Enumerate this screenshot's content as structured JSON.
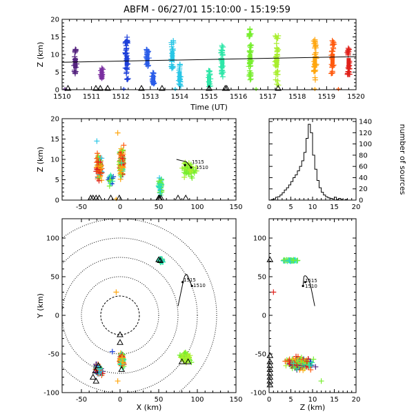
{
  "title": "ABFM - 06/27/01 15:10:00 - 15:19:59",
  "colors": {
    "t1510": "#55237f",
    "t1511": "#7a2fa0",
    "t1512": "#1d3fd9",
    "t1513": "#2a5ce8",
    "t1514": "#29c6e6",
    "t1515": "#2ee6a8",
    "t1516": "#77ee2e",
    "t1517": "#a8ee2e",
    "t1518": "#ffa60f",
    "t1519": "#ff5a0f",
    "t1520": "#e0201a",
    "station": "#000000",
    "track": "#000000"
  },
  "chart_data": [
    {
      "id": "time-height",
      "type": "scatter",
      "xlabel": "Time (UT)",
      "ylabel": "Z (km)",
      "xticks": [
        "1510",
        "1511",
        "1512",
        "1513",
        "1514",
        "1515",
        "1516",
        "1517",
        "1518",
        "1519",
        "1520"
      ],
      "yticks": [
        "0",
        "5",
        "10",
        "15",
        "20"
      ],
      "ylim": [
        0,
        20
      ],
      "xlim": [
        0,
        10
      ],
      "trend": [
        [
          0,
          7.8
        ],
        [
          10,
          9.4
        ]
      ],
      "clusters": [
        {
          "t": 0.45,
          "zmin": 4.5,
          "zmax": 11.5,
          "c": "t1510"
        },
        {
          "t": 1.35,
          "zmin": 3.2,
          "zmax": 6.5,
          "c": "t1511"
        },
        {
          "t": 2.2,
          "zmin": 2.5,
          "zmax": 15.0,
          "c": "t1512"
        },
        {
          "t": 2.9,
          "zmin": 6.5,
          "zmax": 12.0,
          "c": "t1513"
        },
        {
          "t": 3.1,
          "zmin": 1.5,
          "zmax": 5.0,
          "c": "t1513"
        },
        {
          "t": 3.75,
          "zmin": 6.0,
          "zmax": 14.0,
          "c": "t1514"
        },
        {
          "t": 4.0,
          "zmin": 1.0,
          "zmax": 7.5,
          "c": "t1514"
        },
        {
          "t": 5.0,
          "zmin": 0.5,
          "zmax": 5.5,
          "c": "t1515"
        },
        {
          "t": 5.45,
          "zmin": 3.0,
          "zmax": 13.0,
          "c": "t1515"
        },
        {
          "t": 6.4,
          "zmin": 1.0,
          "zmax": 17.5,
          "c": "t1516"
        },
        {
          "t": 7.3,
          "zmin": 1.0,
          "zmax": 15.5,
          "c": "t1517"
        },
        {
          "t": 8.6,
          "zmin": 2.5,
          "zmax": 14.5,
          "c": "t1518"
        },
        {
          "t": 9.2,
          "zmin": 4.0,
          "zmax": 14.5,
          "c": "t1519"
        },
        {
          "t": 9.75,
          "zmin": 4.0,
          "zmax": 12.0,
          "c": "t1520"
        }
      ]
    },
    {
      "id": "x-height",
      "type": "scatter",
      "ylabel": "Z (km)",
      "xticks": [
        "-50",
        "0",
        "50",
        "100",
        "150"
      ],
      "yticks": [
        "0",
        "5",
        "10",
        "15",
        "20"
      ],
      "xlim": [
        -75,
        150
      ],
      "ylim": [
        0,
        20
      ],
      "track_labels": [
        "1515",
        "1510"
      ]
    },
    {
      "id": "histogram",
      "type": "line",
      "ylabel": "number of sources",
      "xticks": [
        "0",
        "5",
        "10",
        "15",
        "20"
      ],
      "yticks": [
        "0",
        "20",
        "40",
        "60",
        "80",
        "100",
        "120",
        "140"
      ],
      "xlim": [
        0,
        20
      ],
      "ylim": [
        0,
        145
      ],
      "x": [
        0,
        0.5,
        1,
        1.5,
        2,
        2.5,
        3,
        3.5,
        4,
        4.5,
        5,
        5.5,
        6,
        6.5,
        7,
        7.5,
        8,
        8.5,
        9,
        9.5,
        10,
        10.5,
        11,
        11.5,
        12,
        12.5,
        13,
        13.5,
        14,
        14.5,
        15,
        15.5,
        16,
        16.5,
        17,
        17.5,
        18,
        18.5,
        19,
        19.5
      ],
      "values": [
        0,
        1,
        2,
        5,
        6,
        9,
        13,
        18,
        22,
        27,
        33,
        40,
        45,
        52,
        60,
        70,
        85,
        110,
        135,
        120,
        80,
        55,
        35,
        22,
        14,
        9,
        6,
        4,
        3,
        2,
        5,
        1,
        3,
        1,
        0,
        1,
        0,
        0,
        0,
        0
      ]
    },
    {
      "id": "plan-view",
      "type": "scatter",
      "xlabel": "X (km)",
      "ylabel": "Y (km)",
      "xticks": [
        "-50",
        "0",
        "50",
        "100",
        "150"
      ],
      "yticks": [
        "-100",
        "-50",
        "0",
        "50",
        "100"
      ],
      "xlim": [
        -75,
        150
      ],
      "ylim": [
        -100,
        125
      ],
      "ring_radii_km": [
        25,
        50,
        75,
        100,
        125
      ],
      "track_labels": [
        "1515",
        "1510"
      ]
    },
    {
      "id": "height-y",
      "type": "scatter",
      "xlabel": "Z (km)",
      "xticks": [
        "0",
        "5",
        "10",
        "15",
        "20"
      ],
      "yticks": [
        "-100",
        "-50",
        "0",
        "50",
        "100"
      ],
      "xlim": [
        0,
        20
      ],
      "ylim": [
        -100,
        125
      ],
      "track_labels": [
        "1515",
        "1510"
      ]
    }
  ]
}
